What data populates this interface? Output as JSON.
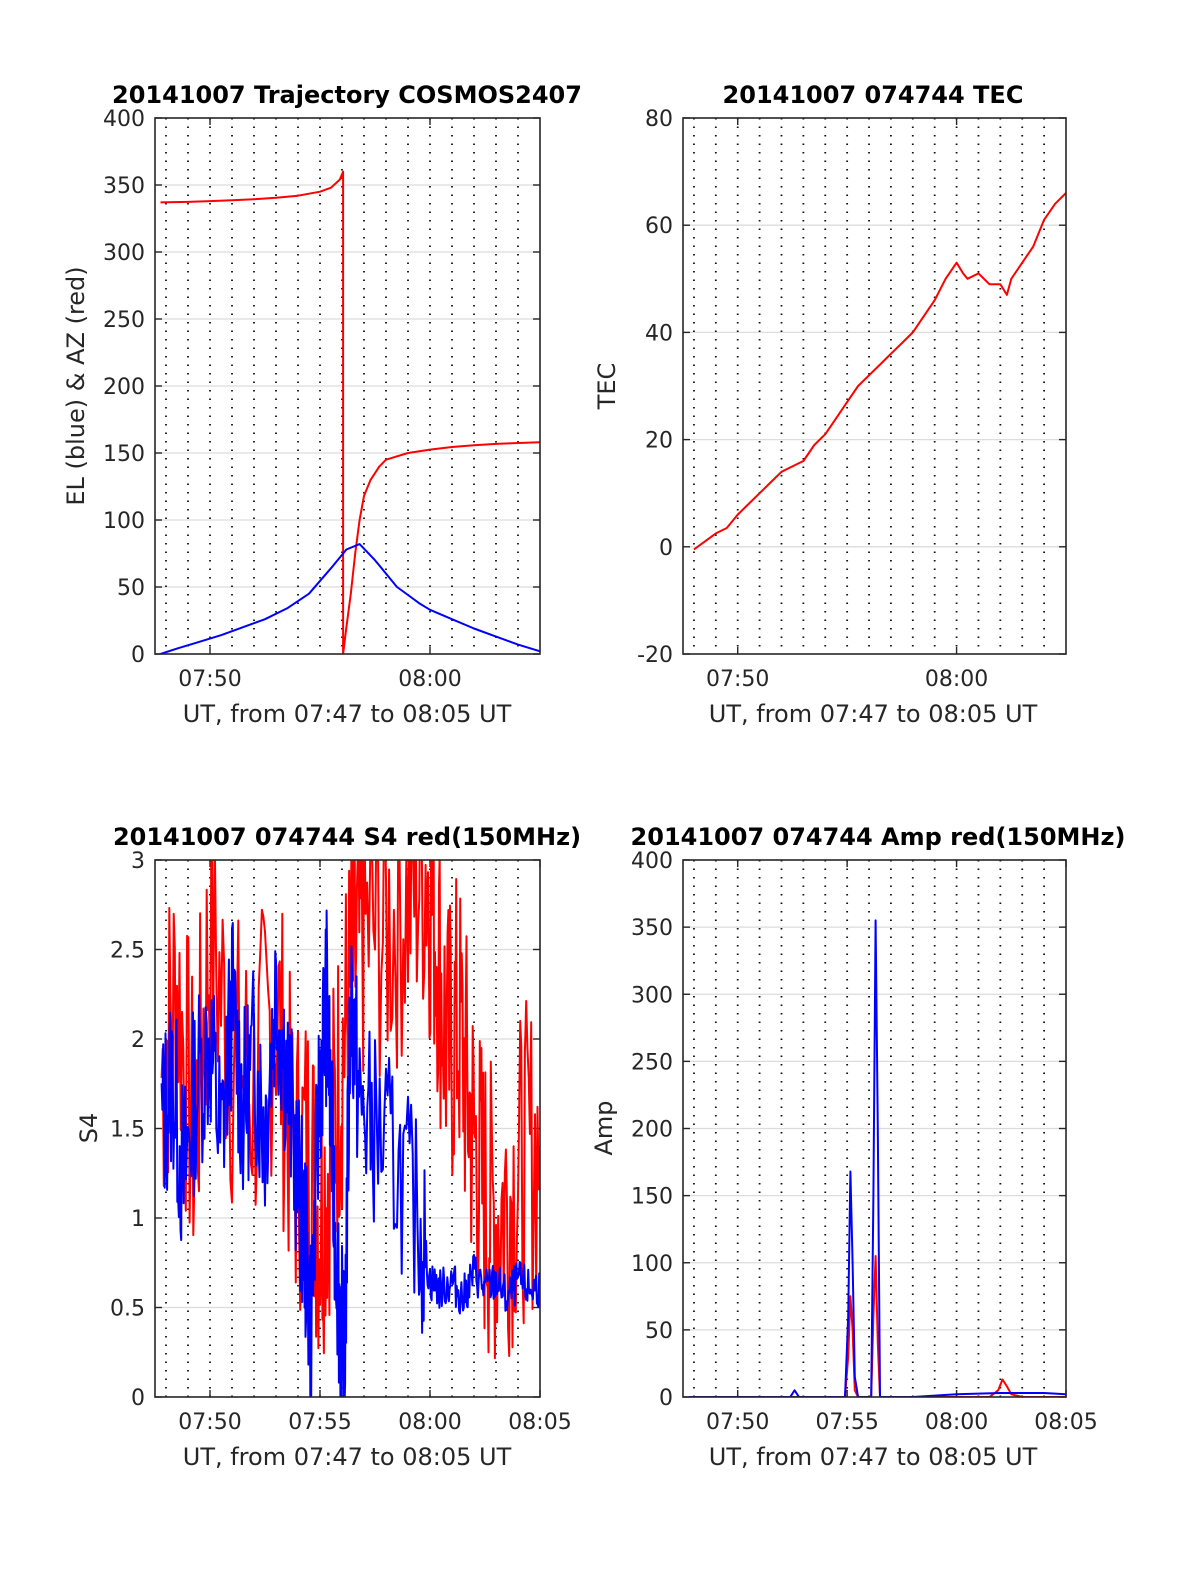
{
  "figure": {
    "panels": [
      {
        "id": "trajectory",
        "title": "20141007 Trajectory COSMOS2407",
        "ylabel": "EL (blue) & AZ (red)",
        "xlabel": "UT, from 07:47 to 08:05 UT",
        "x_tick_labels": [
          "07:50",
          "08:00"
        ],
        "y_tick_labels": [
          "0",
          "50",
          "100",
          "150",
          "200",
          "250",
          "300",
          "350",
          "400"
        ]
      },
      {
        "id": "tec",
        "title": "20141007 074744 TEC",
        "ylabel": "TEC",
        "xlabel": "UT, from 07:47 to 08:05 UT",
        "x_tick_labels": [
          "07:50",
          "08:00"
        ],
        "y_tick_labels": [
          "-20",
          "0",
          "20",
          "40",
          "60",
          "80"
        ]
      },
      {
        "id": "s4",
        "title": "20141007 074744 S4 red(150MHz)",
        "ylabel": "S4",
        "xlabel": "UT, from 07:47 to 08:05 UT",
        "x_tick_labels": [
          "07:50",
          "07:55",
          "08:00",
          "08:05"
        ],
        "y_tick_labels": [
          "0",
          "0.5",
          "1",
          "1.5",
          "2",
          "2.5",
          "3"
        ]
      },
      {
        "id": "amp",
        "title": "20141007 074744 Amp red(150MHz)",
        "ylabel": "Amp",
        "xlabel": "UT, from 07:47 to 08:05 UT",
        "x_tick_labels": [
          "07:50",
          "07:55",
          "08:00",
          "08:05"
        ],
        "y_tick_labels": [
          "0",
          "50",
          "100",
          "150",
          "200",
          "250",
          "300",
          "350",
          "400"
        ]
      }
    ]
  },
  "chart_data": [
    {
      "type": "line",
      "title": "20141007 Trajectory COSMOS2407",
      "xlabel": "UT, from 07:47 to 08:05 UT",
      "ylabel": "EL (blue) & AZ (red)",
      "x_unit": "minutes after 07:00 UT",
      "xlim": [
        47.5,
        65.0
      ],
      "ylim": [
        0,
        400
      ],
      "grid": true,
      "series": [
        {
          "name": "AZ",
          "color": "#ff0000",
          "x": [
            47.75,
            49,
            50,
            51,
            52,
            53,
            54,
            55,
            55.5,
            55.9,
            56.05,
            56.05,
            56.2,
            56.4,
            56.6,
            56.8,
            57,
            57.3,
            57.7,
            58,
            59,
            60,
            61,
            62,
            63,
            64,
            65
          ],
          "y": [
            337,
            337.4,
            338,
            338.6,
            339.4,
            340.5,
            342,
            345,
            348,
            354,
            360,
            0,
            20,
            45,
            75,
            100,
            118,
            130,
            140,
            145,
            150,
            152.5,
            154.5,
            155.8,
            156.8,
            157.5,
            158
          ]
        },
        {
          "name": "EL",
          "color": "#0000ff",
          "x": [
            47.75,
            48.5,
            49.5,
            50.5,
            51.5,
            52.5,
            53.5,
            54.5,
            55.5,
            56.2,
            56.8,
            57.5,
            58,
            58.5,
            59,
            59.5,
            60,
            61,
            62,
            63,
            64,
            65
          ],
          "y": [
            0,
            4,
            9,
            14,
            20,
            26,
            34,
            45,
            64,
            78,
            82,
            70,
            60,
            50,
            44,
            38,
            33,
            26,
            19,
            13,
            7,
            2
          ]
        }
      ]
    },
    {
      "type": "line",
      "title": "20141007 074744 TEC",
      "xlabel": "UT, from 07:47 to 08:05 UT",
      "ylabel": "TEC",
      "x_unit": "minutes after 07:00 UT",
      "xlim": [
        47.5,
        65.0
      ],
      "ylim": [
        -20,
        80
      ],
      "grid": true,
      "series": [
        {
          "name": "TEC",
          "color": "#ff0000",
          "x": [
            48,
            48.5,
            49,
            49.5,
            50,
            50.5,
            51,
            51.5,
            52,
            52.5,
            53,
            53.5,
            54,
            54.5,
            55,
            55.5,
            56,
            56.5,
            57,
            57.5,
            58,
            58.5,
            59,
            59.5,
            60,
            60.3,
            60.5,
            61,
            61.5,
            62,
            62.3,
            62.5,
            63,
            63.5,
            64,
            64.5,
            65
          ],
          "y": [
            -0.5,
            1,
            2.5,
            3.5,
            6,
            8,
            10,
            12,
            14,
            15,
            16,
            19,
            21,
            24,
            27,
            30,
            32,
            34,
            36,
            38,
            40,
            43,
            46,
            50,
            53,
            51,
            50,
            51,
            49,
            49,
            47,
            50,
            53,
            56,
            61,
            64,
            66
          ]
        }
      ]
    },
    {
      "type": "line",
      "title": "20141007 074744 S4 red(150MHz)",
      "xlabel": "UT, from 07:47 to 08:05 UT",
      "ylabel": "S4",
      "x_unit": "minutes after 07:00 UT",
      "xlim": [
        47.5,
        65.0
      ],
      "ylim": [
        0,
        3
      ],
      "grid": true,
      "series": [
        {
          "name": "red",
          "color": "#ff0000",
          "x": [
            47.8,
            48.5,
            49.3,
            50,
            51,
            52,
            53,
            53.8,
            54.5,
            55,
            55.5,
            56,
            56.5,
            57,
            58,
            59,
            59.8,
            60.3,
            60.8,
            61.3,
            61.8,
            62.3,
            62.8,
            63.5,
            64.2,
            65
          ],
          "y": [
            1.8,
            2.3,
            1.4,
            2.6,
            1.9,
            1.7,
            2.2,
            1.3,
            1.4,
            1.0,
            1.4,
            1.9,
            2.4,
            2.6,
            2.6,
            2.8,
            3.0,
            2.6,
            1.9,
            2.1,
            1.6,
            1.2,
            1.0,
            1.1,
            1.3,
            1.4
          ]
        },
        {
          "name": "blue",
          "color": "#0000ff",
          "x": [
            47.8,
            48.3,
            48.8,
            49.3,
            50,
            50.5,
            51,
            51.5,
            52,
            52.5,
            53,
            53.5,
            54,
            54.3,
            54.6,
            55,
            55.3,
            55.6,
            55.9,
            56.1,
            56.4,
            56.8,
            57.5,
            58.5,
            59.5,
            60,
            60.5,
            61,
            61.5,
            62,
            62.5,
            63,
            63.5,
            64,
            64.5,
            65
          ],
          "y": [
            1.5,
            1.8,
            1.2,
            1.7,
            2.0,
            1.4,
            2.2,
            1.6,
            1.9,
            1.5,
            2.3,
            1.8,
            1.2,
            0.9,
            0.4,
            1.8,
            2.2,
            1.2,
            0.5,
            0.1,
            2.3,
            1.6,
            1.5,
            1.3,
            1.0,
            0.65,
            0.6,
            0.65,
            0.55,
            0.7,
            0.6,
            0.65,
            0.55,
            0.65,
            0.6,
            0.62
          ]
        }
      ]
    },
    {
      "type": "line",
      "title": "20141007 074744 Amp red(150MHz)",
      "xlabel": "UT, from 07:47 to 08:05 UT",
      "ylabel": "Amp",
      "x_unit": "minutes after 07:00 UT",
      "xlim": [
        47.5,
        65.0
      ],
      "ylim": [
        0,
        400
      ],
      "grid": true,
      "series": [
        {
          "name": "red",
          "color": "#ff0000",
          "x": [
            47.8,
            50,
            52.5,
            54.9,
            55.05,
            55.15,
            55.25,
            55.35,
            55.5,
            56.1,
            56.2,
            56.3,
            56.4,
            56.5,
            58,
            61.5,
            61.9,
            62.1,
            62.3,
            62.5,
            63,
            65
          ],
          "y": [
            0,
            0,
            0,
            0,
            30,
            75,
            50,
            5,
            0,
            0,
            60,
            105,
            40,
            0,
            0,
            0,
            5,
            13,
            8,
            2,
            0,
            0
          ]
        },
        {
          "name": "blue",
          "color": "#0000ff",
          "x": [
            47.8,
            50,
            52.4,
            52.6,
            52.8,
            54.9,
            55.05,
            55.15,
            55.25,
            55.35,
            55.5,
            56.1,
            56.2,
            56.3,
            56.4,
            56.5,
            58,
            60,
            62,
            64,
            65
          ],
          "y": [
            0,
            0,
            0,
            5,
            0,
            0,
            60,
            168,
            100,
            15,
            0,
            0,
            150,
            355,
            200,
            0,
            0,
            2,
            3,
            3,
            2
          ]
        }
      ]
    }
  ]
}
